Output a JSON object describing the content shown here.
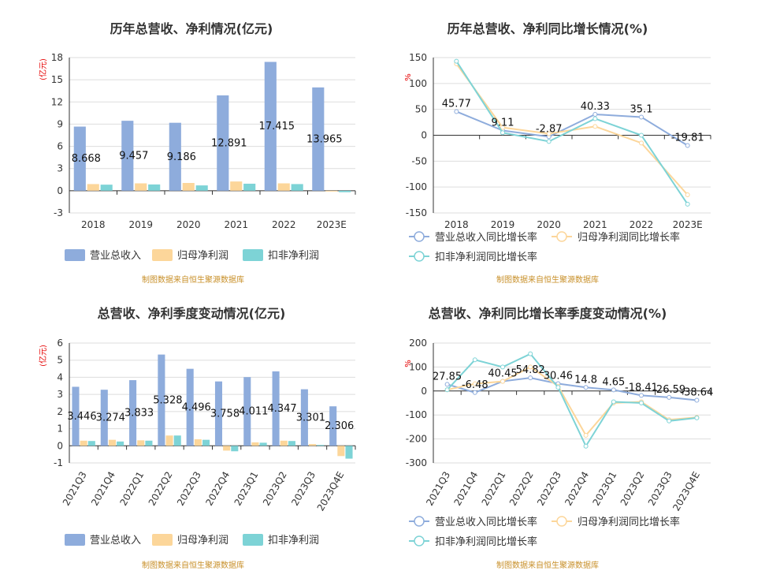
{
  "charts": [
    {
      "id": "annual-bar",
      "title": "历年总营收、净利情况(亿元)",
      "unit": "(亿元)",
      "source": "制图数据来自恒生聚源数据库",
      "colors": [
        "#8eacdc",
        "#fcd69a",
        "#7dd3d6"
      ],
      "chart_data": {
        "type": "bar",
        "categories": [
          "2018",
          "2019",
          "2020",
          "2021",
          "2022",
          "2023E"
        ],
        "series": [
          {
            "name": "营业总收入",
            "values": [
              8.668,
              9.457,
              9.186,
              12.891,
              17.415,
              13.965
            ],
            "labels": [
              "8.668",
              "9.457",
              "9.186",
              "12.891",
              "17.415",
              "13.965"
            ]
          },
          {
            "name": "归母净利润",
            "values": [
              0.9,
              1.0,
              1.05,
              1.25,
              1.0,
              -0.1
            ]
          },
          {
            "name": "扣非净利润",
            "values": [
              0.82,
              0.85,
              0.72,
              0.95,
              0.9,
              -0.2
            ]
          }
        ],
        "ylim": [
          -3,
          18
        ],
        "yticks": [
          "-3",
          "0",
          "3",
          "6",
          "9",
          "12",
          "15",
          "18"
        ]
      }
    },
    {
      "id": "annual-line",
      "title": "历年总营收、净利同比增长情况(%)",
      "unit": "%",
      "colors": [
        "#8eacdc",
        "#fcd69a",
        "#7dd3d6"
      ],
      "chart_data": {
        "type": "line",
        "categories": [
          "2018",
          "2019",
          "2020",
          "2021",
          "2022",
          "2023E"
        ],
        "series": [
          {
            "name": "营业总收入同比增长率",
            "values": [
              45.77,
              9.11,
              -2.87,
              40.33,
              35.1,
              -19.81
            ],
            "labels": [
              "45.77",
              "9.11",
              "-2.87",
              "40.33",
              "35.1",
              "-19.81"
            ]
          },
          {
            "name": "归母净利润同比增长率",
            "values": [
              138,
              15,
              3,
              17,
              -15,
              -115
            ]
          },
          {
            "name": "扣非净利润同比增长率",
            "values": [
              143,
              5,
              -12,
              32,
              0,
              -133
            ]
          }
        ],
        "ylim": [
          -150,
          150
        ],
        "yticks": [
          "-150",
          "-100",
          "-50",
          "0",
          "50",
          "100",
          "150"
        ]
      }
    },
    {
      "id": "quarter-bar",
      "title": "总营收、净利季度变动情况(亿元)",
      "unit": "(亿元)",
      "source": "制图数据来自恒生聚源数据库",
      "colors": [
        "#8eacdc",
        "#fcd69a",
        "#7dd3d6"
      ],
      "chart_data": {
        "type": "bar",
        "categories": [
          "2021Q3",
          "2021Q4",
          "2022Q1",
          "2022Q2",
          "2022Q3",
          "2022Q4",
          "2023Q1",
          "2023Q2",
          "2023Q3",
          "2023Q4E"
        ],
        "series": [
          {
            "name": "营业总收入",
            "values": [
              3.446,
              3.274,
              3.833,
              5.328,
              4.496,
              3.758,
              4.011,
              4.347,
              3.301,
              2.306
            ],
            "labels": [
              "3.446",
              "3.274",
              "3.833",
              "5.328",
              "4.496",
              "3.758",
              "4.011",
              "4.347",
              "3.301",
              "2.306"
            ]
          },
          {
            "name": "归母净利润",
            "values": [
              0.3,
              0.35,
              0.32,
              0.6,
              0.38,
              -0.28,
              0.2,
              0.3,
              0.1,
              -0.6
            ]
          },
          {
            "name": "扣非净利润",
            "values": [
              0.28,
              0.25,
              0.3,
              0.6,
              0.35,
              -0.32,
              0.18,
              0.28,
              0.05,
              -0.75
            ]
          }
        ],
        "ylim": [
          -1,
          6
        ],
        "yticks": [
          "-1",
          "0",
          "1",
          "2",
          "3",
          "4",
          "5",
          "6"
        ]
      }
    },
    {
      "id": "quarter-line",
      "title": "总营收、净利同比增长率季度变动情况(%)",
      "unit": "%",
      "source": "制图数据来自恒生聚源数据库",
      "colors": [
        "#8eacdc",
        "#fcd69a",
        "#7dd3d6"
      ],
      "chart_data": {
        "type": "line",
        "categories": [
          "2021Q3",
          "2021Q4",
          "2022Q1",
          "2022Q2",
          "2022Q3",
          "2022Q4",
          "2023Q1",
          "2023Q2",
          "2023Q3",
          "2023Q4E"
        ],
        "series": [
          {
            "name": "营业总收入同比增长率",
            "values": [
              27.85,
              -6.48,
              40.45,
              54.82,
              30.46,
              14.8,
              4.65,
              -18.41,
              -26.59,
              -38.64
            ],
            "labels": [
              "27.85",
              "-6.48",
              "40.45",
              "54.82",
              "30.46",
              "14.8",
              "4.65",
              "-18.41",
              "-26.59",
              "-38.64"
            ]
          },
          {
            "name": "归母净利润同比增长率",
            "values": [
              5,
              30,
              40,
              100,
              20,
              -185,
              -50,
              -45,
              -120,
              -110
            ]
          },
          {
            "name": "扣非净利润同比增长率",
            "values": [
              5,
              130,
              100,
              155,
              15,
              -230,
              -45,
              -50,
              -125,
              -112
            ]
          }
        ],
        "ylim": [
          -300,
          200
        ],
        "yticks": [
          "-300",
          "-200",
          "-100",
          "0",
          "100",
          "200"
        ]
      }
    }
  ]
}
